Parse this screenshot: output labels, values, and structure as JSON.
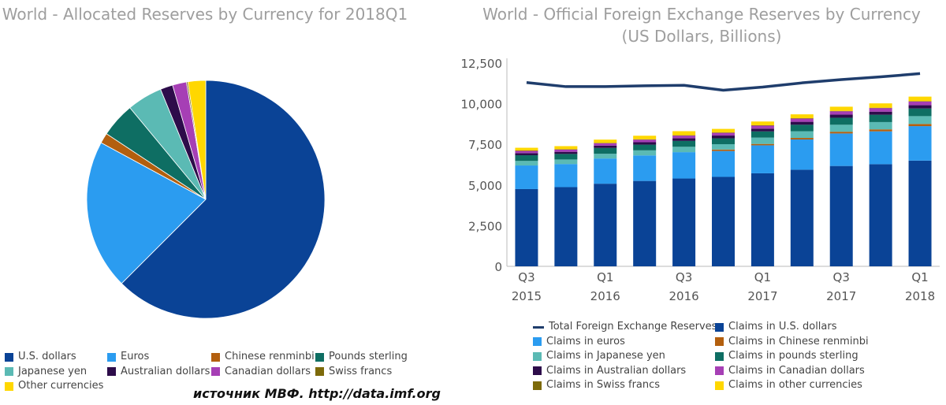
{
  "source": "источник МВФ. http://data.imf.org",
  "colors": {
    "usd": "#0a4396",
    "eur": "#2b9cf0",
    "cny": "#b35f0e",
    "gbp": "#0e6e63",
    "jpy": "#5bbab4",
    "aud": "#2d0c4a",
    "cad": "#a63fb5",
    "chf": "#7d6a0a",
    "other": "#ffd700",
    "total": "#1f3d6c",
    "axis": "#555555",
    "grid": "#dddddd"
  },
  "chart_data": [
    {
      "type": "pie",
      "title": "World - Allocated Reserves by Currency for 2018Q1",
      "slices": [
        {
          "key": "usd",
          "label": "U.S. dollars",
          "value": 62.5
        },
        {
          "key": "eur",
          "label": "Euros",
          "value": 20.4
        },
        {
          "key": "cny",
          "label": "Chinese renminbi",
          "value": 1.4
        },
        {
          "key": "gbp",
          "label": "Pounds sterling",
          "value": 4.7
        },
        {
          "key": "jpy",
          "label": "Japanese yen",
          "value": 4.8
        },
        {
          "key": "aud",
          "label": "Australian dollars",
          "value": 1.7
        },
        {
          "key": "cad",
          "label": "Canadian dollars",
          "value": 1.9
        },
        {
          "key": "chf",
          "label": "Swiss francs",
          "value": 0.2
        },
        {
          "key": "other",
          "label": "Other currencies",
          "value": 2.4
        }
      ]
    },
    {
      "type": "bar",
      "title": "World - Official Foreign Exchange Reserves by Currency",
      "subtitle": "(US Dollars, Billions)",
      "ylim": [
        0,
        12500
      ],
      "yticks": [
        "0",
        "2,500",
        "5,000",
        "7,500",
        "10,000",
        "12,500"
      ],
      "ytick_values": [
        0,
        2500,
        5000,
        7500,
        10000,
        12500
      ],
      "categories": [
        "2015Q3",
        "2015Q4",
        "2016Q1",
        "2016Q2",
        "2016Q3",
        "2016Q4",
        "2017Q1",
        "2017Q2",
        "2017Q3",
        "2017Q4",
        "2018Q1"
      ],
      "x_tick_labels": [
        {
          "q": "Q3",
          "year": "2015"
        },
        {
          "q": "",
          "year": ""
        },
        {
          "q": "Q1",
          "year": "2016"
        },
        {
          "q": "",
          "year": ""
        },
        {
          "q": "Q3",
          "year": "2016"
        },
        {
          "q": "",
          "year": ""
        },
        {
          "q": "Q1",
          "year": "2017"
        },
        {
          "q": "",
          "year": ""
        },
        {
          "q": "Q3",
          "year": "2017"
        },
        {
          "q": "",
          "year": ""
        },
        {
          "q": "Q1",
          "year": "2018"
        }
      ],
      "series": [
        {
          "key": "usd",
          "name": "Claims in U.S. dollars",
          "values": [
            4750,
            4870,
            5080,
            5250,
            5400,
            5500,
            5720,
            5940,
            6170,
            6280,
            6500
          ]
        },
        {
          "key": "eur",
          "name": "Claims in euros",
          "values": [
            1450,
            1420,
            1550,
            1570,
            1620,
            1590,
            1720,
            1860,
            2000,
            2020,
            2120
          ]
        },
        {
          "key": "cny",
          "name": "Claims in Chinese renminbi",
          "values": [
            0,
            0,
            0,
            0,
            0,
            90,
            85,
            95,
            105,
            120,
            135
          ]
        },
        {
          "key": "jpy",
          "name": "Claims in Japanese yen",
          "values": [
            280,
            280,
            290,
            310,
            330,
            330,
            390,
            410,
            430,
            450,
            480
          ]
        },
        {
          "key": "gbp",
          "name": "Claims in pounds sterling",
          "values": [
            350,
            340,
            360,
            350,
            360,
            360,
            380,
            400,
            430,
            450,
            470
          ]
        },
        {
          "key": "aud",
          "name": "Claims in Australian dollars",
          "values": [
            130,
            130,
            140,
            150,
            160,
            170,
            170,
            180,
            190,
            190,
            200
          ]
        },
        {
          "key": "cad",
          "name": "Claims in Canadian dollars",
          "values": [
            140,
            140,
            150,
            160,
            170,
            170,
            190,
            200,
            210,
            220,
            230
          ]
        },
        {
          "key": "chf",
          "name": "Claims in Swiss francs",
          "values": [
            20,
            20,
            20,
            20,
            20,
            20,
            20,
            20,
            20,
            20,
            20
          ]
        },
        {
          "key": "other",
          "name": "Claims in other currencies",
          "values": [
            170,
            190,
            200,
            220,
            250,
            220,
            230,
            240,
            260,
            270,
            280
          ]
        }
      ],
      "line": {
        "key": "total",
        "name": "Total Foreign Exchange Reserves",
        "values": [
          11300,
          11050,
          11050,
          11100,
          11130,
          10830,
          11020,
          11280,
          11480,
          11650,
          11850
        ]
      }
    }
  ],
  "legends": {
    "pie": [
      {
        "key": "usd",
        "label": "U.S. dollars"
      },
      {
        "key": "eur",
        "label": "Euros"
      },
      {
        "key": "cny",
        "label": "Chinese renminbi"
      },
      {
        "key": "gbp",
        "label": "Pounds sterling"
      },
      {
        "key": "jpy",
        "label": "Japanese yen"
      },
      {
        "key": "aud",
        "label": "Australian dollars"
      },
      {
        "key": "cad",
        "label": "Canadian dollars"
      },
      {
        "key": "chf",
        "label": "Swiss francs"
      },
      {
        "key": "other",
        "label": "Other currencies"
      }
    ],
    "bar": [
      {
        "key": "total",
        "label": "Total Foreign Exchange Reserves",
        "kind": "line"
      },
      {
        "key": "usd",
        "label": "Claims in U.S. dollars",
        "kind": "box"
      },
      {
        "key": "eur",
        "label": "Claims in euros",
        "kind": "box"
      },
      {
        "key": "cny",
        "label": "Claims in Chinese renminbi",
        "kind": "box"
      },
      {
        "key": "jpy",
        "label": "Claims in Japanese yen",
        "kind": "box"
      },
      {
        "key": "gbp",
        "label": "Claims in pounds sterling",
        "kind": "box"
      },
      {
        "key": "aud",
        "label": "Claims in Australian dollars",
        "kind": "box"
      },
      {
        "key": "cad",
        "label": "Claims in Canadian dollars",
        "kind": "box"
      },
      {
        "key": "chf",
        "label": "Claims in Swiss francs",
        "kind": "box"
      },
      {
        "key": "other",
        "label": "Claims in other currencies",
        "kind": "box"
      }
    ]
  }
}
